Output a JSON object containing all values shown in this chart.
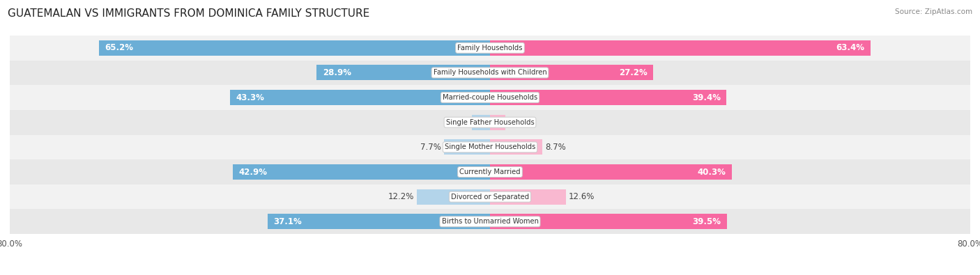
{
  "title": "GUATEMALAN VS IMMIGRANTS FROM DOMINICA FAMILY STRUCTURE",
  "source": "Source: ZipAtlas.com",
  "categories": [
    "Family Households",
    "Family Households with Children",
    "Married-couple Households",
    "Single Father Households",
    "Single Mother Households",
    "Currently Married",
    "Divorced or Separated",
    "Births to Unmarried Women"
  ],
  "guatemalan": [
    65.2,
    28.9,
    43.3,
    3.0,
    7.7,
    42.9,
    12.2,
    37.1
  ],
  "dominica": [
    63.4,
    27.2,
    39.4,
    2.5,
    8.7,
    40.3,
    12.6,
    39.5
  ],
  "max_val": 80.0,
  "color_guatemalan": "#6baed6",
  "color_dominica": "#f768a1",
  "color_guatemalan_light": "#b3d4ea",
  "color_dominica_light": "#f9b8d0",
  "label_fontsize": 8.5,
  "title_fontsize": 11,
  "bar_height": 0.62,
  "light_rows": [
    3,
    4,
    6
  ]
}
